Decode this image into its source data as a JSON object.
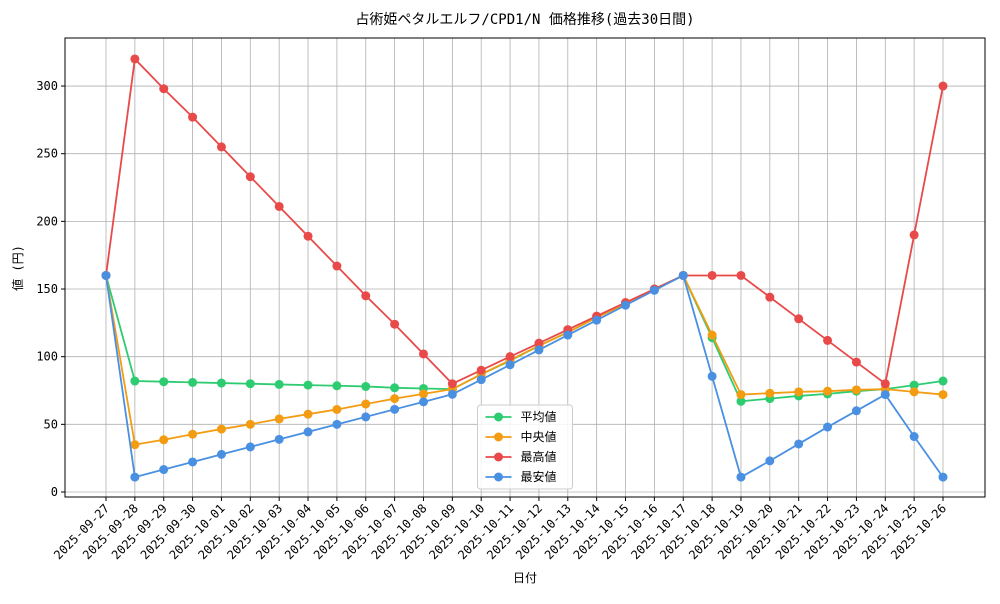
{
  "chart_data": {
    "type": "line",
    "title": "占術姫ペタルエルフ/CPD1/N 価格推移(過去30日間)",
    "x_label": "日付",
    "y_label": "値 (円)",
    "categories": [
      "2025-09-27",
      "2025-09-28",
      "2025-09-29",
      "2025-09-30",
      "2025-10-01",
      "2025-10-02",
      "2025-10-03",
      "2025-10-04",
      "2025-10-05",
      "2025-10-06",
      "2025-10-07",
      "2025-10-08",
      "2025-10-09",
      "2025-10-10",
      "2025-10-11",
      "2025-10-12",
      "2025-10-13",
      "2025-10-14",
      "2025-10-15",
      "2025-10-16",
      "2025-10-17",
      "2025-10-18",
      "2025-10-19",
      "2025-10-20",
      "2025-10-21",
      "2025-10-22",
      "2025-10-23",
      "2025-10-24",
      "2025-10-25",
      "2025-10-26"
    ],
    "series": [
      {
        "name": "平均値",
        "color": "#2ecc71",
        "values": [
          160,
          82,
          81.5,
          81,
          80.5,
          80,
          79.5,
          79,
          78.5,
          78,
          77,
          76.5,
          76,
          87,
          97,
          108,
          118,
          129,
          139,
          150,
          160,
          114,
          67,
          69,
          71,
          72.5,
          74.5,
          76,
          79,
          82
        ]
      },
      {
        "name": "中央値",
        "color": "#f39c12",
        "values": [
          160,
          35,
          38.6,
          42.7,
          46.5,
          50,
          54,
          57.5,
          61,
          65,
          69,
          72.5,
          76,
          87,
          97.5,
          108,
          118,
          129,
          139,
          150,
          160,
          116,
          72,
          73,
          74,
          74.5,
          75.5,
          76,
          74,
          72
        ]
      },
      {
        "name": "最高値",
        "color": "#e84a4a",
        "values": [
          160,
          320,
          298,
          277,
          255,
          233,
          211,
          189,
          167,
          145,
          124,
          102,
          80,
          90,
          100,
          110,
          120,
          130,
          140,
          150,
          160,
          160,
          160,
          144,
          128,
          112,
          96,
          80,
          190,
          300
        ]
      },
      {
        "name": "最安値",
        "color": "#4a90e2",
        "values": [
          160,
          11,
          16.6,
          22.2,
          27.8,
          33.3,
          38.9,
          44.4,
          50,
          55.5,
          61.1,
          66.6,
          72.2,
          83,
          94,
          105,
          116,
          127,
          138,
          149,
          160,
          85.5,
          11,
          23,
          35.5,
          48,
          60,
          72,
          41,
          11
        ]
      }
    ],
    "ylim": [
      -3.7,
      335.5
    ],
    "yticks": [
      0,
      50,
      100,
      150,
      200,
      250,
      300
    ],
    "grid": true,
    "legend": "lower center"
  }
}
